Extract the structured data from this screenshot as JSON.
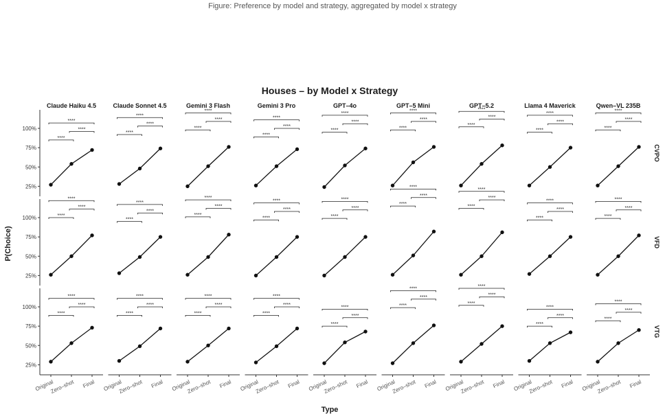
{
  "header": {
    "caption": "Figure: Preference by model and strategy, aggregated by model x strategy"
  },
  "chart_data": {
    "type": "line",
    "title": "Houses – by Model x Strategy",
    "xlabel": "Type",
    "ylabel": "P(Choice)",
    "categories": [
      "Original",
      "Zero–shot",
      "Final"
    ],
    "ylim": [
      0.12,
      1.24
    ],
    "yticks": [
      0.25,
      0.5,
      0.75,
      1.0
    ],
    "ytick_labels": [
      "25%",
      "50%",
      "75%",
      "100%"
    ],
    "models": [
      "Claude Haiku 4.5",
      "Claude Sonnet 4.5",
      "Gemini 3 Flash",
      "Gemini 3 Pro",
      "GPT–4o",
      "GPT–5 Mini",
      "GPT–5.2",
      "Llama 4 Maverick",
      "Qwen–VL 235B"
    ],
    "strategies": [
      "CVPO",
      "VFD",
      "VTG"
    ],
    "significance_label": "****",
    "grid": false,
    "legend": "none",
    "series": [
      {
        "strategy": "CVPO",
        "model": "Claude Haiku 4.5",
        "values": [
          0.27,
          0.54,
          0.72
        ],
        "brackets": [
          0.85,
          0.96,
          1.07
        ]
      },
      {
        "strategy": "CVPO",
        "model": "Claude Sonnet 4.5",
        "values": [
          0.28,
          0.48,
          0.74
        ],
        "brackets": [
          0.92,
          1.03,
          1.14
        ]
      },
      {
        "strategy": "CVPO",
        "model": "Gemini 3 Flash",
        "values": [
          0.25,
          0.51,
          0.76
        ],
        "brackets": [
          0.98,
          1.09,
          1.2
        ]
      },
      {
        "strategy": "CVPO",
        "model": "Gemini 3 Pro",
        "values": [
          0.26,
          0.51,
          0.73
        ],
        "brackets": [
          0.89,
          1.0,
          1.11
        ]
      },
      {
        "strategy": "CVPO",
        "model": "GPT–4o",
        "values": [
          0.24,
          0.52,
          0.74
        ],
        "brackets": [
          0.95,
          1.06,
          1.17
        ]
      },
      {
        "strategy": "CVPO",
        "model": "GPT–5 Mini",
        "values": [
          0.26,
          0.56,
          0.76
        ],
        "brackets": [
          0.98,
          1.09,
          1.2
        ]
      },
      {
        "strategy": "CVPO",
        "model": "GPT–5.2",
        "values": [
          0.26,
          0.54,
          0.78
        ],
        "brackets": [
          1.02,
          1.12,
          1.22
        ]
      },
      {
        "strategy": "CVPO",
        "model": "Llama 4 Maverick",
        "values": [
          0.26,
          0.5,
          0.75
        ],
        "brackets": [
          0.95,
          1.06,
          1.17
        ]
      },
      {
        "strategy": "CVPO",
        "model": "Qwen–VL 235B",
        "values": [
          0.26,
          0.51,
          0.76
        ],
        "brackets": [
          0.98,
          1.09,
          1.2
        ]
      },
      {
        "strategy": "VFD",
        "model": "Claude Haiku 4.5",
        "values": [
          0.26,
          0.5,
          0.77
        ],
        "brackets": [
          1.0,
          1.11,
          1.22
        ]
      },
      {
        "strategy": "VFD",
        "model": "Claude Sonnet 4.5",
        "values": [
          0.28,
          0.49,
          0.75
        ],
        "brackets": [
          0.95,
          1.06,
          1.17
        ]
      },
      {
        "strategy": "VFD",
        "model": "Gemini 3 Flash",
        "values": [
          0.26,
          0.49,
          0.78
        ],
        "brackets": [
          1.01,
          1.12,
          1.23
        ]
      },
      {
        "strategy": "VFD",
        "model": "Gemini 3 Pro",
        "values": [
          0.25,
          0.49,
          0.75
        ],
        "brackets": [
          0.97,
          1.08,
          1.19
        ]
      },
      {
        "strategy": "VFD",
        "model": "GPT–4o",
        "values": [
          0.25,
          0.49,
          0.75
        ],
        "brackets": [
          0.99,
          1.1,
          1.21
        ]
      },
      {
        "strategy": "VFD",
        "model": "GPT–5 Mini",
        "values": [
          0.26,
          0.51,
          0.82
        ],
        "brackets": [
          1.15,
          1.26,
          1.37
        ]
      },
      {
        "strategy": "VFD",
        "model": "GPT–5.2",
        "values": [
          0.26,
          0.5,
          0.81
        ],
        "brackets": [
          1.12,
          1.23,
          1.34
        ]
      },
      {
        "strategy": "VFD",
        "model": "Llama 4 Maverick",
        "values": [
          0.27,
          0.5,
          0.75
        ],
        "brackets": [
          0.97,
          1.08,
          1.19
        ]
      },
      {
        "strategy": "VFD",
        "model": "Qwen–VL 235B",
        "values": [
          0.26,
          0.5,
          0.77
        ],
        "brackets": [
          0.99,
          1.1,
          1.21
        ]
      },
      {
        "strategy": "VTG",
        "model": "Claude Haiku 4.5",
        "values": [
          0.29,
          0.53,
          0.73
        ],
        "brackets": [
          0.89,
          1.0,
          1.11
        ]
      },
      {
        "strategy": "VTG",
        "model": "Claude Sonnet 4.5",
        "values": [
          0.3,
          0.49,
          0.72
        ],
        "brackets": [
          0.89,
          1.0,
          1.11
        ]
      },
      {
        "strategy": "VTG",
        "model": "Gemini 3 Flash",
        "values": [
          0.29,
          0.5,
          0.72
        ],
        "brackets": [
          0.89,
          1.0,
          1.11
        ]
      },
      {
        "strategy": "VTG",
        "model": "Gemini 3 Pro",
        "values": [
          0.28,
          0.49,
          0.72
        ],
        "brackets": [
          0.89,
          1.0,
          1.11
        ]
      },
      {
        "strategy": "VTG",
        "model": "GPT–4o",
        "values": [
          0.27,
          0.54,
          0.68
        ],
        "brackets": [
          0.75,
          0.86,
          0.97
        ]
      },
      {
        "strategy": "VTG",
        "model": "GPT–5 Mini",
        "values": [
          0.27,
          0.53,
          0.76
        ],
        "brackets": [
          0.99,
          1.1,
          1.21
        ]
      },
      {
        "strategy": "VTG",
        "model": "GPT–5.2",
        "values": [
          0.29,
          0.52,
          0.75
        ],
        "brackets": [
          1.02,
          1.13,
          1.24
        ]
      },
      {
        "strategy": "VTG",
        "model": "Llama 4 Maverick",
        "values": [
          0.3,
          0.53,
          0.67
        ],
        "brackets": [
          0.75,
          0.86,
          0.97
        ]
      },
      {
        "strategy": "VTG",
        "model": "Qwen–VL 235B",
        "values": [
          0.29,
          0.53,
          0.7
        ],
        "brackets": [
          0.82,
          0.93,
          1.04
        ]
      }
    ]
  }
}
